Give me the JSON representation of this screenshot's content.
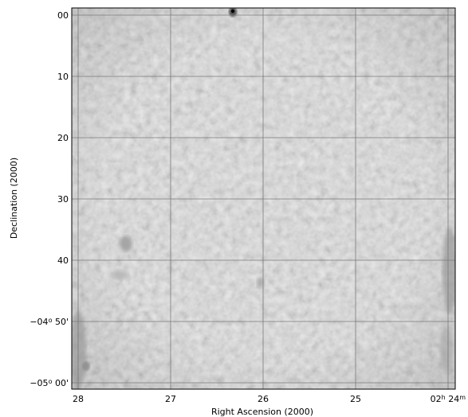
{
  "chart_data": {
    "type": "heatmap",
    "title": "",
    "xlabel": "Right Ascension (2000)",
    "ylabel": "Declination (2000)",
    "grid": true,
    "colormap": "grayscale",
    "x_ticks": [
      {
        "parts": [
          {
            "text": "28"
          }
        ]
      },
      {
        "parts": [
          {
            "text": "27"
          }
        ]
      },
      {
        "parts": [
          {
            "text": "26"
          }
        ]
      },
      {
        "parts": [
          {
            "text": "25"
          }
        ]
      },
      {
        "parts": [
          {
            "text": "02"
          },
          {
            "text": "h",
            "sup": true
          },
          {
            "text": " 24"
          },
          {
            "text": "m",
            "sup": true
          }
        ]
      }
    ],
    "y_ticks": [
      {
        "parts": [
          {
            "text": "00"
          }
        ]
      },
      {
        "parts": [
          {
            "text": "10"
          }
        ]
      },
      {
        "parts": [
          {
            "text": "20"
          }
        ]
      },
      {
        "parts": [
          {
            "text": "30"
          }
        ]
      },
      {
        "parts": [
          {
            "text": "40"
          }
        ]
      },
      {
        "parts": [
          {
            "text": "−04"
          },
          {
            "text": "o",
            "sup": true
          },
          {
            "text": " 50'"
          }
        ]
      },
      {
        "parts": [
          {
            "text": "−05"
          },
          {
            "text": "o",
            "sup": true
          },
          {
            "text": " 00'"
          }
        ]
      }
    ],
    "x_range": [
      "02h 28m",
      "02h 24m"
    ],
    "y_range": [
      "-04° 00'",
      "-05° 00'"
    ]
  }
}
